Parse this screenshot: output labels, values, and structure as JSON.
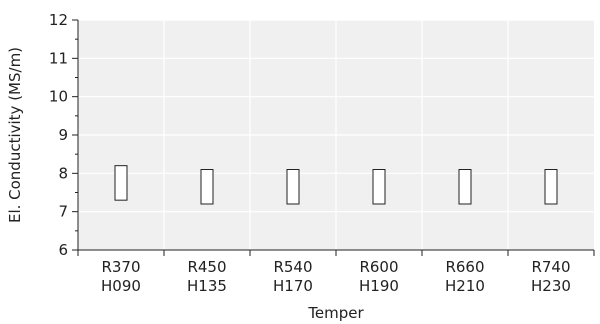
{
  "chart_data": {
    "type": "range-bar",
    "title": "",
    "xlabel": "Temper",
    "ylabel": "El. Conductivity (MS/m)",
    "ylim": [
      6,
      12
    ],
    "yticks": [
      6,
      7,
      8,
      9,
      10,
      11,
      12
    ],
    "grid": true,
    "categories": [
      {
        "line1": "R370",
        "line2": "H090"
      },
      {
        "line1": "R450",
        "line2": "H135"
      },
      {
        "line1": "R540",
        "line2": "H170"
      },
      {
        "line1": "R600",
        "line2": "H190"
      },
      {
        "line1": "R660",
        "line2": "H210"
      },
      {
        "line1": "R740",
        "line2": "H230"
      }
    ],
    "ranges": [
      {
        "low": 7.3,
        "high": 8.2
      },
      {
        "low": 7.2,
        "high": 8.1
      },
      {
        "low": 7.2,
        "high": 8.1
      },
      {
        "low": 7.2,
        "high": 8.1
      },
      {
        "low": 7.2,
        "high": 8.1
      },
      {
        "low": 7.2,
        "high": 8.1
      }
    ],
    "colors": {
      "plot_bg": "#f0f0f0",
      "grid": "#ffffff",
      "bar_fill": "#ffffff",
      "bar_stroke": "#222222",
      "axis": "#222222"
    }
  }
}
